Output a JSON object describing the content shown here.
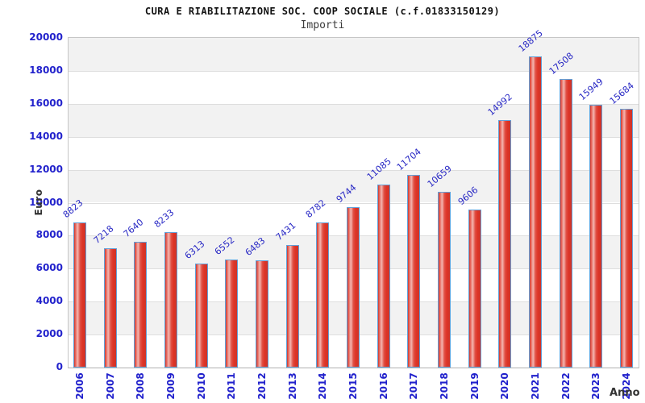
{
  "header": {
    "title": "CURA E RIABILITAZIONE SOC. COOP SOCIALE (c.f.01833150129)",
    "subtitle": "Importi"
  },
  "chart_data": {
    "type": "bar",
    "title": "CURA E RIABILITAZIONE SOC. COOP SOCIALE (c.f.01833150129)",
    "subtitle": "Importi",
    "categories": [
      "2006",
      "2007",
      "2008",
      "2009",
      "2010",
      "2011",
      "2012",
      "2013",
      "2014",
      "2015",
      "2016",
      "2017",
      "2018",
      "2019",
      "2020",
      "2021",
      "2022",
      "2023",
      "2024"
    ],
    "values": [
      8823,
      7218,
      7640,
      8233,
      6313,
      6552,
      6483,
      7431,
      8782,
      9744,
      11085,
      11704,
      10659,
      9606,
      14992,
      18875,
      17508,
      15949,
      15684
    ],
    "xlabel": "Anno",
    "ylabel": "Euro",
    "ylim": [
      0,
      20000
    ],
    "ytick_step": 2000,
    "yticks": [
      0,
      2000,
      4000,
      6000,
      8000,
      10000,
      12000,
      14000,
      16000,
      18000,
      20000
    ],
    "grid": true,
    "legend_position": "none",
    "bar_value_labels_rotated": true,
    "colors": {
      "bar_fill": "#de3427",
      "bar_highlight": "#f4b6b0",
      "bar_border": "#62a0d8",
      "value_label_text": "#2727c4",
      "ytick_text": "#2222cc",
      "xtick_text": "#2020cc",
      "band_gray": "#f2f2f2",
      "band_white": "#ffffff",
      "gridline": "#dedede",
      "plot_border": "#c6c6c6",
      "axis_title_text": "#333333"
    }
  }
}
